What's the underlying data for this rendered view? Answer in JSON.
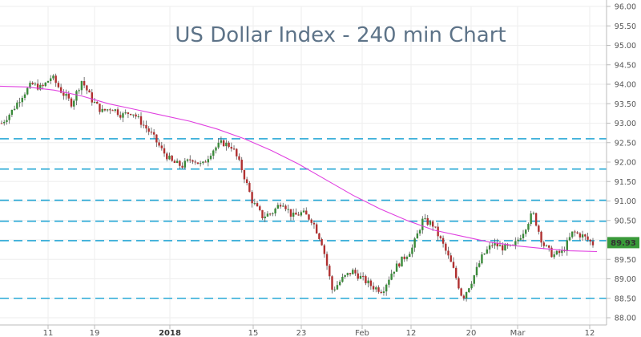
{
  "chart_data": {
    "type": "candlestick",
    "title": "US Dollar Index - 240 min Chart",
    "ylim": [
      88.0,
      96.0
    ],
    "y_ticks": [
      "96.00",
      "95.50",
      "95.00",
      "94.50",
      "94.00",
      "93.50",
      "93.00",
      "92.50",
      "92.00",
      "91.50",
      "91.00",
      "90.50",
      "90.00",
      "89.50",
      "89.00",
      "88.50",
      "88.00"
    ],
    "x_ticks": [
      {
        "label": "11",
        "bold": false
      },
      {
        "label": "19",
        "bold": false
      },
      {
        "label": "2018",
        "bold": true
      },
      {
        "label": "15",
        "bold": false
      },
      {
        "label": "23",
        "bold": false
      },
      {
        "label": "Feb",
        "bold": false
      },
      {
        "label": "12",
        "bold": false
      },
      {
        "label": "20",
        "bold": false
      },
      {
        "label": "Mar",
        "bold": false
      },
      {
        "label": "12",
        "bold": false
      }
    ],
    "last_price": "89.93",
    "horizontal_levels": [
      92.6,
      91.82,
      91.02,
      90.48,
      89.98,
      88.5
    ],
    "price_path": [
      93.0,
      93.3,
      93.7,
      94.0,
      93.9,
      94.2,
      93.8,
      93.5,
      94.1,
      93.6,
      93.3,
      93.4,
      93.2,
      93.3,
      93.0,
      92.7,
      92.3,
      92.0,
      91.9,
      92.1,
      91.9,
      92.3,
      92.5,
      92.4,
      91.8,
      91.0,
      90.6,
      90.7,
      91.0,
      90.6,
      90.7,
      90.5,
      89.9,
      88.7,
      89.0,
      89.2,
      89.0,
      88.8,
      88.7,
      89.2,
      89.5,
      89.8,
      90.5,
      90.4,
      89.9,
      89.3,
      88.5,
      89.0,
      89.6,
      89.9,
      89.8,
      89.8,
      90.2,
      90.7,
      89.9,
      89.6,
      89.7,
      90.2,
      90.1,
      89.9
    ],
    "moving_average_path": [
      93.95,
      93.93,
      93.85,
      93.7,
      93.5,
      93.35,
      93.2,
      93.05,
      92.85,
      92.6,
      92.3,
      91.95,
      91.55,
      91.15,
      90.8,
      90.5,
      90.25,
      90.1,
      89.95,
      89.85,
      89.78,
      89.72,
      89.7
    ],
    "colors": {
      "up": "#3a8a3a",
      "down": "#b03030",
      "level": "#27a8d6",
      "moving_average": "#e040e0",
      "title": "#5d7388",
      "last_price_box": "#3a9a3a"
    }
  }
}
